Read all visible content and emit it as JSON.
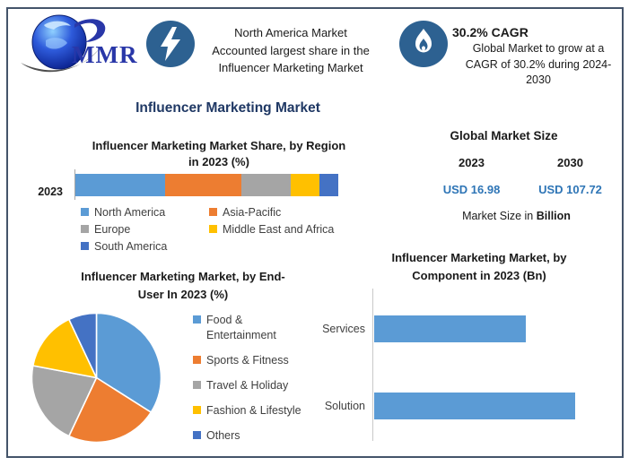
{
  "colors": {
    "accent_navy": "#1F3864",
    "value_blue": "#2E75B6",
    "icon_circle": "#2D6191",
    "frame_border": "#44546A",
    "bar_blue": "#5B9BD5"
  },
  "header": {
    "logo": {
      "text": "MMR",
      "icon": "globe-logo"
    },
    "highlight1": {
      "icon": "lightning-icon",
      "text": "North America Market\nAccounted largest share in the\nInfluencer Marketing Market"
    },
    "highlight2": {
      "icon": "flame-icon",
      "title": "30.2% CAGR",
      "text": "Global Market to grow at a\nCAGR of 30.2% during 2024-\n2030"
    }
  },
  "main_title": "Influencer Marketing Market",
  "market_size": {
    "title": "Global Market Size",
    "col1": {
      "year": "2023",
      "value": "USD 16.98"
    },
    "col2": {
      "year": "2030",
      "value": "USD 107.72"
    },
    "footnote_regular": "Market Size in ",
    "footnote_bold": "Billion"
  },
  "chart_data": [
    {
      "id": "region_share",
      "type": "bar",
      "variant": "stacked_horizontal",
      "title": "Influencer Marketing Market Share, by Region\nin 2023 (%)",
      "categories": [
        "2023"
      ],
      "unit": "%",
      "xlim": [
        0,
        100
      ],
      "legend_position": "bottom",
      "series": [
        {
          "name": "North America",
          "color": "#5B9BD5",
          "values": [
            34
          ]
        },
        {
          "name": "Asia-Pacific",
          "color": "#ED7D31",
          "values": [
            29
          ]
        },
        {
          "name": "Europe",
          "color": "#A5A5A5",
          "values": [
            19
          ]
        },
        {
          "name": "Middle East and Africa",
          "color": "#FFC000",
          "values": [
            11
          ]
        },
        {
          "name": "South America",
          "color": "#4472C4",
          "values": [
            7
          ]
        }
      ]
    },
    {
      "id": "end_user",
      "type": "pie",
      "title": "Influencer Marketing Market, by End-\nUser In 2023 (%)",
      "labels": [
        "Food &\nEntertainment",
        "Sports & Fitness",
        "Travel & Holiday",
        "Fashion & Lifestyle",
        "Others"
      ],
      "values": [
        34,
        23,
        21,
        15,
        7
      ],
      "colors": [
        "#5B9BD5",
        "#ED7D31",
        "#A5A5A5",
        "#FFC000",
        "#4472C4"
      ],
      "legend_position": "right",
      "start_angle_deg": 0,
      "direction": "clockwise"
    },
    {
      "id": "component",
      "type": "bar",
      "variant": "horizontal",
      "title": "Influencer Marketing Market, by\nComponent in 2023 (Bn)",
      "categories": [
        "Services",
        "Solution"
      ],
      "values": [
        7.3,
        9.7
      ],
      "unit": "Bn",
      "xlim": [
        0,
        10
      ],
      "color": "#5B9BD5",
      "grid": false,
      "legend_position": "none"
    }
  ]
}
